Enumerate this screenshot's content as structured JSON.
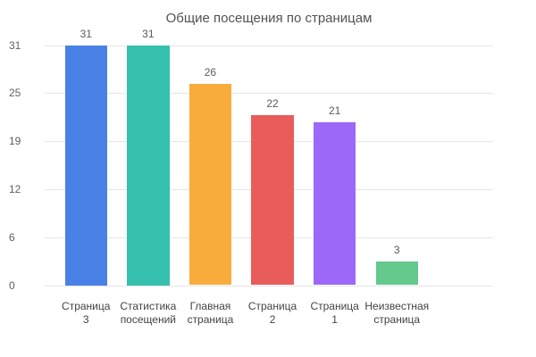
{
  "chart": {
    "title": "Общие посещения по страницам"
  },
  "chart_data": {
    "type": "bar",
    "title": "Общие посещения по страницам",
    "categories": [
      "Страница 3",
      "Статистика посещений",
      "Главная страница",
      "Страница 2",
      "Страница 1",
      "Неизвестная страница"
    ],
    "values": [
      31,
      31,
      26,
      22,
      21,
      3
    ],
    "bar_colors": [
      "#4a81e6",
      "#35c0ae",
      "#f8ac3c",
      "#e95c5c",
      "#9c68f7",
      "#63c98d"
    ],
    "y_tick_labels": [
      "0",
      "6",
      "12",
      "19",
      "25",
      "31"
    ],
    "ylim": [
      0,
      31
    ],
    "xlabel": "",
    "ylabel": "",
    "grid": true,
    "legend": "none",
    "value_labels": true,
    "background": "#ffffff",
    "text_colors": {
      "title": "#525252",
      "y_ticks": "#5f5f5f",
      "x_labels": "#434343",
      "value_labels": "#5a5a5a"
    },
    "gridline_color": "#e6e6e6"
  }
}
